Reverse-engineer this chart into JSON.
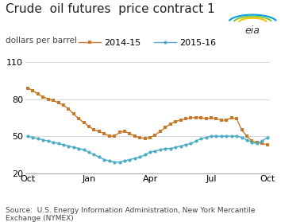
{
  "title": "Crude  oil futures  price contract 1",
  "ylabel": "dollars per barrel",
  "source_text": "Source:  U.S. Energy Information Administration, New York Mercantile\nExchange (NYMEX)",
  "ylim": [
    20,
    110
  ],
  "yticks": [
    20,
    50,
    80,
    110
  ],
  "x_tick_labels": [
    "Oct",
    "Jan",
    "Apr",
    "Jul",
    "Oct"
  ],
  "background_color": "#ffffff",
  "grid_color": "#cccccc",
  "series": [
    {
      "label": "2014-15",
      "color": "#c8792a",
      "marker": "s",
      "markersize": 3.0,
      "linewidth": 1.0,
      "x": [
        0,
        1,
        2,
        3,
        4,
        5,
        6,
        7,
        8,
        9,
        10,
        11,
        12,
        13,
        14,
        15,
        16,
        17,
        18,
        19,
        20,
        21,
        22,
        23,
        24,
        25,
        26,
        27,
        28,
        29,
        30,
        31,
        32,
        33,
        34,
        35,
        36,
        37,
        38,
        39,
        40,
        41,
        42,
        43,
        44,
        45,
        46,
        47
      ],
      "y": [
        89,
        87,
        84,
        82,
        80,
        79,
        77,
        75,
        72,
        68,
        64,
        61,
        58,
        55,
        54,
        52,
        50,
        50,
        53,
        54,
        52,
        50,
        49,
        48,
        49,
        51,
        54,
        57,
        60,
        62,
        63,
        64,
        65,
        65,
        65,
        64,
        65,
        64,
        63,
        63,
        65,
        64,
        55,
        50,
        46,
        45,
        44,
        43
      ]
    },
    {
      "label": "2015-16",
      "color": "#4bacc6",
      "marker": "o",
      "markersize": 3.0,
      "linewidth": 1.0,
      "x": [
        0,
        1,
        2,
        3,
        4,
        5,
        6,
        7,
        8,
        9,
        10,
        11,
        12,
        13,
        14,
        15,
        16,
        17,
        18,
        19,
        20,
        21,
        22,
        23,
        24,
        25,
        26,
        27,
        28,
        29,
        30,
        31,
        32,
        33,
        34,
        35,
        36,
        37,
        38,
        39,
        40,
        41,
        42,
        43,
        44,
        45,
        46,
        47
      ],
      "y": [
        50,
        49,
        48,
        47,
        46,
        45,
        44,
        43,
        42,
        41,
        40,
        39,
        37,
        35,
        33,
        31,
        30,
        29,
        29,
        30,
        31,
        32,
        33,
        35,
        37,
        38,
        39,
        40,
        40,
        41,
        42,
        43,
        44,
        46,
        48,
        49,
        50,
        50,
        50,
        50,
        50,
        50,
        49,
        47,
        45,
        44,
        46,
        49
      ]
    }
  ],
  "x_tick_positions": [
    0,
    12,
    24,
    36,
    47
  ],
  "title_fontsize": 11,
  "label_fontsize": 7.5,
  "tick_fontsize": 8,
  "source_fontsize": 6.5,
  "legend_fontsize": 8
}
